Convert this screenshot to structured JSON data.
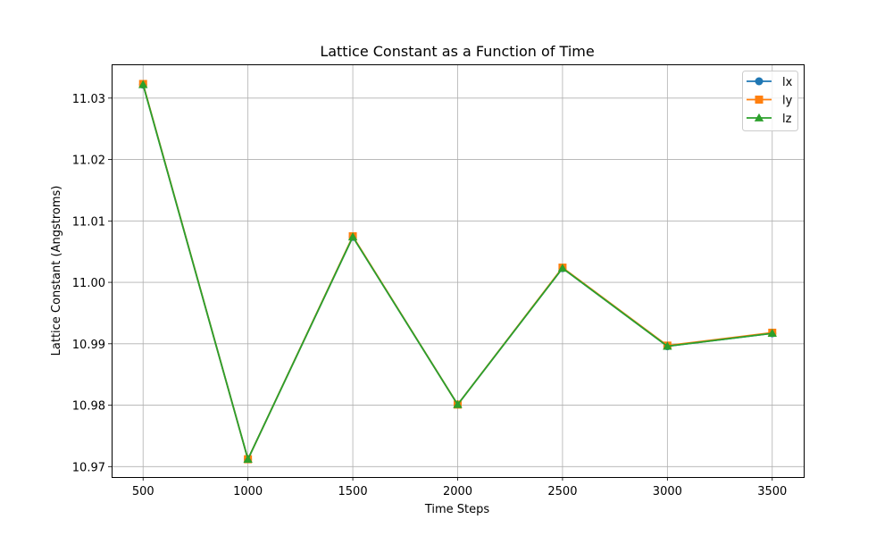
{
  "chart_data": {
    "type": "line",
    "title": "Lattice Constant as a Function of Time",
    "xlabel": "Time Steps",
    "ylabel": "Lattice Constant (Angstroms)",
    "x": [
      500,
      1000,
      1500,
      2000,
      2500,
      3000,
      3500
    ],
    "xticks": [
      500,
      1000,
      1500,
      2000,
      2500,
      3000,
      3500
    ],
    "xtick_labels": [
      "500",
      "1000",
      "1500",
      "2000",
      "2500",
      "3000",
      "3500"
    ],
    "yticks": [
      10.97,
      10.98,
      10.99,
      11.0,
      11.01,
      11.02,
      11.03
    ],
    "ytick_labels": [
      "10.97",
      "10.98",
      "10.99",
      "11.00",
      "11.01",
      "11.02",
      "11.03"
    ],
    "xlim": [
      350,
      3650
    ],
    "ylim": [
      10.9683,
      11.0355
    ],
    "grid": true,
    "legend_position": "top-right",
    "series": [
      {
        "name": "lx",
        "color": "#1f77b4",
        "marker": "circle",
        "values": [
          11.0322,
          10.9712,
          11.0074,
          10.9801,
          11.0023,
          10.9896,
          10.9917
        ]
      },
      {
        "name": "ly",
        "color": "#ff7f0e",
        "marker": "square",
        "values": [
          11.0323,
          10.9712,
          11.0075,
          10.9801,
          11.0024,
          10.9897,
          10.9918
        ]
      },
      {
        "name": "lz",
        "color": "#2ca02c",
        "marker": "triangle",
        "values": [
          11.0322,
          10.9712,
          11.0074,
          10.9801,
          11.0023,
          10.9896,
          10.9917
        ]
      }
    ]
  }
}
